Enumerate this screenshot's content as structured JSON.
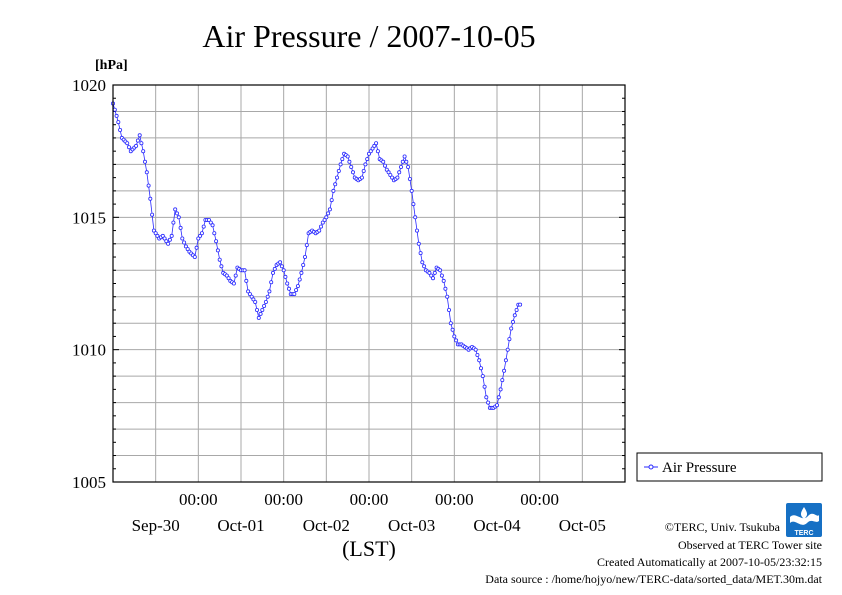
{
  "chart_data": {
    "type": "line",
    "title": "Air Pressure / 2007-10-05",
    "y_unit": "[hPa]",
    "xlabel": "(LST)",
    "ylim": [
      1005,
      1020
    ],
    "y_ticks": [
      "1005",
      "1010",
      "1015",
      "1020"
    ],
    "x_range_hours": [
      0,
      144
    ],
    "time_ticks": [
      "00:00",
      "00:00",
      "00:00",
      "00:00",
      "00:00"
    ],
    "date_labels": [
      "Sep-30",
      "Oct-01",
      "Oct-02",
      "Oct-03",
      "Oct-04",
      "Oct-05"
    ],
    "grid": true,
    "legend_position": "right",
    "series": [
      {
        "name": "Air Pressure",
        "color": "#2a2aff",
        "marker": "open-circle",
        "points": [
          [
            0.0,
            1019.3
          ],
          [
            1.5,
            1018.6
          ],
          [
            2.5,
            1018.0
          ],
          [
            4.0,
            1017.8
          ],
          [
            5.0,
            1017.5
          ],
          [
            6.5,
            1017.7
          ],
          [
            7.5,
            1018.1
          ],
          [
            8.5,
            1017.5
          ],
          [
            9.5,
            1016.7
          ],
          [
            10.5,
            1015.7
          ],
          [
            11.5,
            1014.5
          ],
          [
            13.0,
            1014.2
          ],
          [
            14.0,
            1014.3
          ],
          [
            15.5,
            1014.0
          ],
          [
            16.5,
            1014.3
          ],
          [
            17.5,
            1015.3
          ],
          [
            18.5,
            1015.0
          ],
          [
            19.5,
            1014.2
          ],
          [
            20.5,
            1013.9
          ],
          [
            21.5,
            1013.7
          ],
          [
            23.0,
            1013.5
          ],
          [
            24.0,
            1014.2
          ],
          [
            25.0,
            1014.4
          ],
          [
            26.0,
            1014.9
          ],
          [
            27.0,
            1014.9
          ],
          [
            28.0,
            1014.7
          ],
          [
            29.0,
            1014.1
          ],
          [
            30.0,
            1013.4
          ],
          [
            31.0,
            1012.9
          ],
          [
            32.0,
            1012.8
          ],
          [
            33.0,
            1012.6
          ],
          [
            34.0,
            1012.5
          ],
          [
            35.0,
            1013.1
          ],
          [
            36.0,
            1013.0
          ],
          [
            37.0,
            1013.0
          ],
          [
            38.0,
            1012.2
          ],
          [
            39.0,
            1012.0
          ],
          [
            40.0,
            1011.8
          ],
          [
            41.0,
            1011.2
          ],
          [
            42.0,
            1011.5
          ],
          [
            43.0,
            1011.8
          ],
          [
            44.0,
            1012.2
          ],
          [
            45.0,
            1012.9
          ],
          [
            46.0,
            1013.2
          ],
          [
            47.0,
            1013.3
          ],
          [
            48.0,
            1013.0
          ],
          [
            49.0,
            1012.5
          ],
          [
            50.0,
            1012.1
          ],
          [
            51.0,
            1012.1
          ],
          [
            52.0,
            1012.4
          ],
          [
            53.0,
            1012.9
          ],
          [
            54.0,
            1013.5
          ],
          [
            55.0,
            1014.4
          ],
          [
            56.0,
            1014.5
          ],
          [
            57.0,
            1014.4
          ],
          [
            58.0,
            1014.5
          ],
          [
            59.0,
            1014.8
          ],
          [
            60.0,
            1015.0
          ],
          [
            61.0,
            1015.3
          ],
          [
            62.0,
            1016.0
          ],
          [
            63.0,
            1016.5
          ],
          [
            64.0,
            1017.0
          ],
          [
            65.0,
            1017.4
          ],
          [
            66.0,
            1017.3
          ],
          [
            67.0,
            1016.9
          ],
          [
            68.0,
            1016.5
          ],
          [
            69.0,
            1016.4
          ],
          [
            70.0,
            1016.5
          ],
          [
            71.0,
            1017.0
          ],
          [
            72.0,
            1017.4
          ],
          [
            73.0,
            1017.6
          ],
          [
            74.0,
            1017.8
          ],
          [
            75.0,
            1017.2
          ],
          [
            76.0,
            1017.1
          ],
          [
            77.0,
            1016.8
          ],
          [
            78.0,
            1016.6
          ],
          [
            79.0,
            1016.4
          ],
          [
            80.0,
            1016.5
          ],
          [
            81.0,
            1016.9
          ],
          [
            82.0,
            1017.3
          ],
          [
            83.0,
            1016.9
          ],
          [
            84.0,
            1016.0
          ],
          [
            85.0,
            1015.0
          ],
          [
            86.0,
            1014.0
          ],
          [
            87.0,
            1013.3
          ],
          [
            88.0,
            1013.0
          ],
          [
            89.0,
            1012.9
          ],
          [
            90.0,
            1012.7
          ],
          [
            91.0,
            1013.1
          ],
          [
            92.0,
            1013.0
          ],
          [
            93.0,
            1012.6
          ],
          [
            94.0,
            1012.0
          ],
          [
            95.0,
            1011.0
          ],
          [
            96.0,
            1010.5
          ],
          [
            97.0,
            1010.2
          ],
          [
            98.0,
            1010.2
          ],
          [
            99.0,
            1010.1
          ],
          [
            100.0,
            1010.0
          ],
          [
            101.0,
            1010.1
          ],
          [
            102.0,
            1010.0
          ],
          [
            103.0,
            1009.6
          ],
          [
            104.0,
            1009.0
          ],
          [
            105.0,
            1008.2
          ],
          [
            106.0,
            1007.8
          ],
          [
            107.0,
            1007.8
          ],
          [
            108.0,
            1007.9
          ],
          [
            109.0,
            1008.5
          ],
          [
            110.0,
            1009.2
          ],
          [
            111.0,
            1010.0
          ],
          [
            112.0,
            1010.8
          ],
          [
            113.0,
            1011.3
          ],
          [
            114.0,
            1011.7
          ],
          [
            114.5,
            1011.7
          ]
        ]
      }
    ]
  },
  "footer": {
    "copyright": "©TERC, Univ. Tsukuba",
    "observed": "Observed at TERC Tower site",
    "created": "Created Automatically at 2007-10-05/23:32:15",
    "source": "Data source : /home/hojyo/new/TERC-data/sorted_data/MET.30m.dat",
    "logo_text": "TERC"
  }
}
